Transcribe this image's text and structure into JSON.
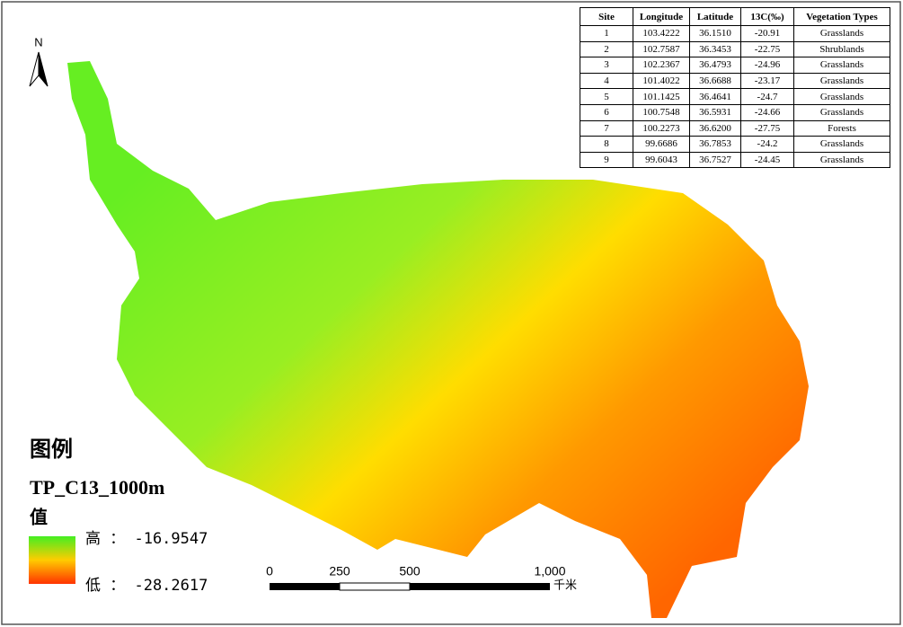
{
  "table": {
    "header": [
      "Site",
      "Longitude",
      "Latitude",
      "13C(‰)",
      "Vegetation Types"
    ],
    "rows": [
      [
        "1",
        "103.4222",
        "36.1510",
        "-20.91",
        "Grasslands"
      ],
      [
        "2",
        "102.7587",
        "36.3453",
        "-22.75",
        "Shrublands"
      ],
      [
        "3",
        "102.2367",
        "36.4793",
        "-24.96",
        "Grasslands"
      ],
      [
        "4",
        "101.4022",
        "36.6688",
        "-23.17",
        "Grasslands"
      ],
      [
        "5",
        "101.1425",
        "36.4641",
        "-24.7",
        "Grasslands"
      ],
      [
        "6",
        "100.7548",
        "36.5931",
        "-24.66",
        "Grasslands"
      ],
      [
        "7",
        "100.2273",
        "36.6200",
        "-27.75",
        "Forests"
      ],
      [
        "8",
        "99.6686",
        "36.7853",
        "-24.2",
        "Grasslands"
      ],
      [
        "9",
        "99.6043",
        "36.7527",
        "-24.45",
        "Grasslands"
      ]
    ]
  },
  "north": "N",
  "legend": {
    "title": "图例",
    "layer": "TP_C13_1000m",
    "field": "值",
    "high": "高 ： -16.9547",
    "low": "低 ： -28.2617"
  },
  "scale_bar": {
    "ticks": [
      "0",
      "250",
      "500",
      "1,000"
    ],
    "unit": "千米"
  }
}
